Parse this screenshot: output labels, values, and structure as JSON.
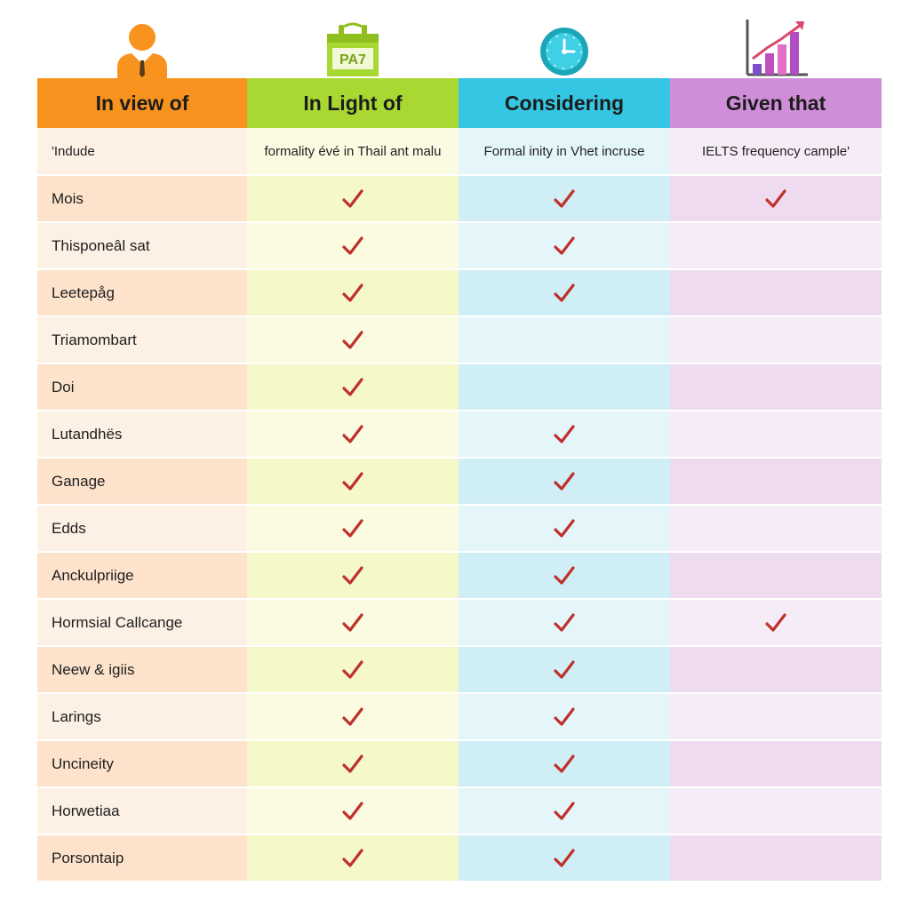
{
  "icons": [
    {
      "name": "person-icon",
      "color": "#f7931e"
    },
    {
      "name": "calendar-icon",
      "color": "#a9d832",
      "text": "PA7"
    },
    {
      "name": "clock-icon",
      "color": "#1aa6b7"
    },
    {
      "name": "bar-chart-icon",
      "color": "#b04fc3"
    }
  ],
  "headers": [
    "In view of",
    "In Light of",
    "Considering",
    "Given that"
  ],
  "subheaders": [
    "'Indude",
    "formality évé in Thail ant malu",
    "Formal inity in Vhet incruse",
    "IELTS frequency cample'"
  ],
  "check_color": "#c0302b",
  "rows": [
    {
      "label": "Mois",
      "checks": [
        true,
        true,
        true
      ]
    },
    {
      "label": "Thisponeâl sat",
      "checks": [
        true,
        true,
        false
      ]
    },
    {
      "label": "Leetepåg",
      "checks": [
        true,
        true,
        false
      ]
    },
    {
      "label": "Triamombart",
      "checks": [
        true,
        false,
        false
      ]
    },
    {
      "label": "Doi",
      "checks": [
        true,
        false,
        false
      ]
    },
    {
      "label": "Lutandhës",
      "checks": [
        true,
        true,
        false
      ]
    },
    {
      "label": "Ganage",
      "checks": [
        true,
        true,
        false
      ]
    },
    {
      "label": "Edds",
      "checks": [
        true,
        true,
        false
      ]
    },
    {
      "label": "Anckulpriige",
      "checks": [
        true,
        true,
        false
      ]
    },
    {
      "label": "Hormsial Callcange",
      "checks": [
        true,
        true,
        true
      ]
    },
    {
      "label": "Neew & igiis",
      "checks": [
        true,
        true,
        false
      ]
    },
    {
      "label": "Larings",
      "checks": [
        true,
        true,
        false
      ]
    },
    {
      "label": "Uncineity",
      "checks": [
        true,
        true,
        false
      ]
    },
    {
      "label": "Horwetiaa",
      "checks": [
        true,
        true,
        false
      ]
    },
    {
      "label": "Porsontaip",
      "checks": [
        true,
        true,
        false
      ]
    }
  ]
}
